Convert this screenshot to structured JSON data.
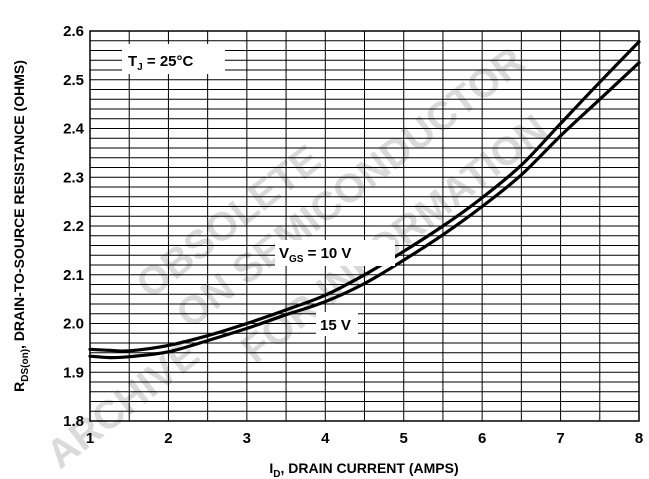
{
  "chart_data": {
    "type": "line",
    "xlabel_main": "I",
    "xlabel_sub": "D",
    "xlabel_rest": ", DRAIN CURRENT (AMPS)",
    "ylabel_main": "R",
    "ylabel_sub": "DS(on)",
    "ylabel_rest": ", DRAIN-TO-SOURCE RESISTANCE (OHMS)",
    "xlim": [
      1,
      8
    ],
    "ylim": [
      1.8,
      2.6
    ],
    "xticks": [
      "1",
      "2",
      "3",
      "4",
      "5",
      "6",
      "7",
      "8"
    ],
    "yticks": [
      "1.8",
      "1.9",
      "2.0",
      "2.1",
      "2.2",
      "2.3",
      "2.4",
      "2.5",
      "2.6"
    ],
    "grid": true,
    "condition_main": "T",
    "condition_sub": "J",
    "condition_rest": " =  25°C",
    "series": [
      {
        "label_main": "V",
        "label_sub": "GS",
        "label_rest": " = 10 V",
        "x": [
          1.0,
          1.25,
          1.5,
          2.0,
          2.5,
          3.0,
          3.5,
          4.0,
          4.5,
          5.0,
          5.5,
          6.0,
          6.5,
          7.0,
          7.5,
          8.0
        ],
        "y": [
          1.947,
          1.945,
          1.944,
          1.955,
          1.975,
          2.0,
          2.028,
          2.058,
          2.1,
          2.148,
          2.2,
          2.258,
          2.325,
          2.41,
          2.495,
          2.578
        ]
      },
      {
        "label_main": "15 V",
        "x": [
          1.0,
          1.25,
          1.5,
          2.0,
          2.5,
          3.0,
          3.5,
          4.0,
          4.5,
          5.0,
          5.5,
          6.0,
          6.5,
          7.0,
          7.5,
          8.0
        ],
        "y": [
          1.933,
          1.93,
          1.932,
          1.942,
          1.965,
          1.99,
          2.018,
          2.045,
          2.082,
          2.13,
          2.182,
          2.24,
          2.305,
          2.385,
          2.46,
          2.535
        ]
      }
    ],
    "watermark": [
      "OBSOLETE",
      "ON SEMICONDUCTOR",
      "FOR INFORMATION",
      "ARCHIVE"
    ]
  }
}
